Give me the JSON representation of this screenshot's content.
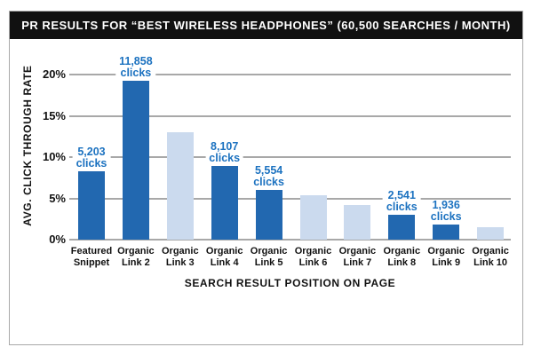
{
  "header": {
    "title": "PR RESULTS FOR “BEST WIRELESS HEADPHONES” (60,500 SEARCHES / MONTH)"
  },
  "chart_data": {
    "type": "bar",
    "title": "PR RESULTS FOR “BEST WIRELESS HEADPHONES” (60,500 SEARCHES / MONTH)",
    "xlabel": "SEARCH RESULT POSITION ON PAGE",
    "ylabel": "AVG. CLICK THROUGH RATE",
    "ylim": [
      0,
      20
    ],
    "yticks": [
      0,
      5,
      10,
      15,
      20
    ],
    "ytick_suffix": "%",
    "grid": true,
    "legend": "none",
    "categories": [
      "Featured Snippet",
      "Organic Link 2",
      "Organic Link 3",
      "Organic Link 4",
      "Organic Link 5",
      "Organic Link 6",
      "Organic Link 7",
      "Organic Link 8",
      "Organic Link 9",
      "Organic Link 10"
    ],
    "bars": [
      {
        "category": "Featured Snippet",
        "value": 8.3,
        "emphasis": true,
        "label": {
          "value": "5,203",
          "unit": "clicks"
        }
      },
      {
        "category": "Organic Link 2",
        "value": 19.3,
        "emphasis": true,
        "label": {
          "value": "11,858",
          "unit": "clicks"
        }
      },
      {
        "category": "Organic Link 3",
        "value": 13.0,
        "emphasis": false,
        "label": null
      },
      {
        "category": "Organic Link 4",
        "value": 8.9,
        "emphasis": true,
        "label": {
          "value": "8,107",
          "unit": "clicks"
        }
      },
      {
        "category": "Organic Link 5",
        "value": 6.0,
        "emphasis": true,
        "label": {
          "value": "5,554",
          "unit": "clicks"
        }
      },
      {
        "category": "Organic Link 6",
        "value": 5.4,
        "emphasis": false,
        "label": null
      },
      {
        "category": "Organic Link 7",
        "value": 4.2,
        "emphasis": false,
        "label": null
      },
      {
        "category": "Organic Link 8",
        "value": 3.0,
        "emphasis": true,
        "label": {
          "value": "2,541",
          "unit": "clicks"
        }
      },
      {
        "category": "Organic Link 9",
        "value": 1.8,
        "emphasis": true,
        "label": {
          "value": "1,936",
          "unit": "clicks"
        }
      },
      {
        "category": "Organic Link 10",
        "value": 1.5,
        "emphasis": false,
        "label": null
      }
    ],
    "colors": {
      "bar_emphasis": "#2268B0",
      "bar_muted": "#CBDAEE",
      "label_text": "#1C72C0",
      "gridline": "#A8A8A8",
      "header_background": "#111111",
      "header_text": "#FFFFFF"
    }
  }
}
